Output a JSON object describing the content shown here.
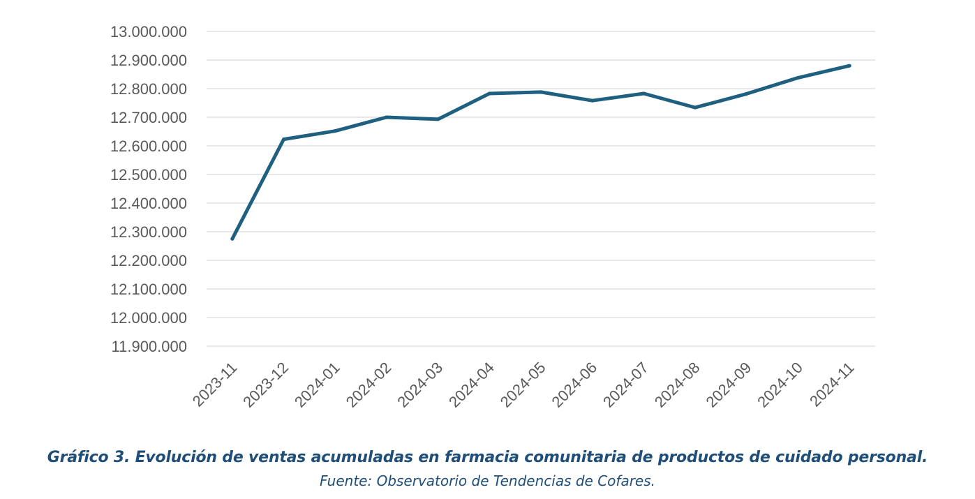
{
  "chart_data": {
    "type": "line",
    "title": "",
    "xlabel": "",
    "ylabel": "",
    "categories": [
      "2023-11",
      "2023-12",
      "2024-01",
      "2024-02",
      "2024-03",
      "2024-04",
      "2024-05",
      "2024-06",
      "2024-07",
      "2024-08",
      "2024-09",
      "2024-10",
      "2024-11"
    ],
    "series": [
      {
        "values": [
          12275000,
          12623000,
          12652000,
          12700000,
          12693000,
          12783000,
          12788000,
          12758000,
          12783000,
          12734000,
          12782000,
          12838000,
          12880000
        ],
        "color": "#1f5f7f"
      }
    ],
    "ylim": [
      11900000,
      13000000
    ],
    "ytick_step": 100000,
    "y_tick_labels": [
      "11.900.000",
      "12.000.000",
      "12.100.000",
      "12.200.000",
      "12.300.000",
      "12.400.000",
      "12.500.000",
      "12.600.000",
      "12.700.000",
      "12.800.000",
      "12.900.000",
      "13.000.000"
    ],
    "grid": "horizontal",
    "legend": "none",
    "gridline_color": "#d9d9d9",
    "axis_text_color": "#595959"
  },
  "caption": {
    "title": "Gráfico 3. Evolución de ventas acumuladas en farmacia comunitaria de productos de cuidado personal.",
    "source": "Fuente: Observatorio de Tendencias de Cofares.",
    "color": "#1f4e79"
  }
}
